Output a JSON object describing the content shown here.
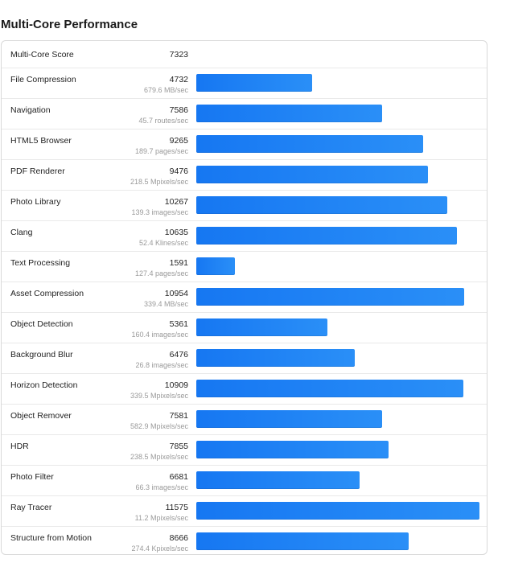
{
  "page": {
    "title": "Multi-Core Performance"
  },
  "summary": {
    "label": "Multi-Core Score",
    "score": "7323"
  },
  "chart_data": {
    "type": "bar",
    "title": "Multi-Core Performance",
    "xlim": [
      0,
      11600
    ],
    "bar_color": "#1a7ff4",
    "categories": [
      "File Compression",
      "Navigation",
      "HTML5 Browser",
      "PDF Renderer",
      "Photo Library",
      "Clang",
      "Text Processing",
      "Asset Compression",
      "Object Detection",
      "Background Blur",
      "Horizon Detection",
      "Object Remover",
      "HDR",
      "Photo Filter",
      "Ray Tracer",
      "Structure from Motion"
    ],
    "values": [
      4732,
      7586,
      9265,
      9476,
      10267,
      10635,
      1591,
      10954,
      5361,
      6476,
      10909,
      7581,
      7855,
      6681,
      11575,
      8666
    ],
    "rates": [
      "679.6 MB/sec",
      "45.7 routes/sec",
      "189.7 pages/sec",
      "218.5 Mpixels/sec",
      "139.3 images/sec",
      "52.4 Klines/sec",
      "127.4 pages/sec",
      "339.4 MB/sec",
      "160.4 images/sec",
      "26.8 images/sec",
      "339.5 Mpixels/sec",
      "582.9 Mpixels/sec",
      "238.5 Mpixels/sec",
      "66.3 images/sec",
      "11.2 Mpixels/sec",
      "274.4 Kpixels/sec"
    ]
  }
}
